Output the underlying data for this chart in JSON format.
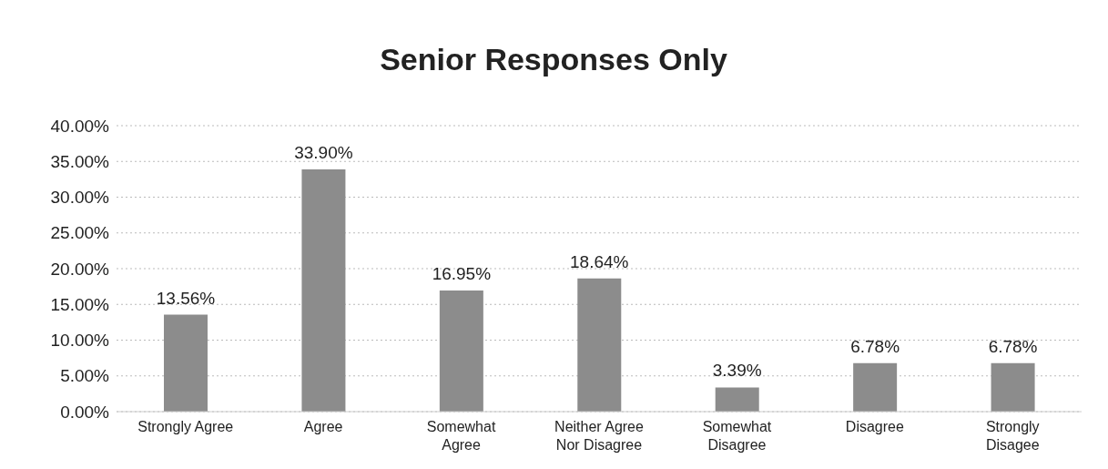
{
  "chart_data": {
    "type": "bar",
    "title": "Senior Responses Only",
    "categories": [
      "Strongly Agree",
      "Agree",
      "Somewhat\nAgree",
      "Neither Agree\nNor Disagree",
      "Somewhat\nDisagree",
      "Disagree",
      "Strongly\nDisagee"
    ],
    "values": [
      13.56,
      33.9,
      16.95,
      18.64,
      3.39,
      6.78,
      6.78
    ],
    "value_labels": [
      "13.56%",
      "33.90%",
      "16.95%",
      "18.64%",
      "3.39%",
      "6.78%",
      "6.78%"
    ],
    "color": "#8c8c8c",
    "ylim": [
      0,
      40
    ],
    "yticks": [
      {
        "value": 0,
        "label": "0.00%"
      },
      {
        "value": 5,
        "label": "5.00%"
      },
      {
        "value": 10,
        "label": "10.00%"
      },
      {
        "value": 15,
        "label": "15.00%"
      },
      {
        "value": 20,
        "label": "20.00%"
      },
      {
        "value": 25,
        "label": "25.00%"
      },
      {
        "value": 30,
        "label": "30.00%"
      },
      {
        "value": 35,
        "label": "35.00%"
      },
      {
        "value": 40,
        "label": "40.00%"
      }
    ],
    "grid": "y"
  }
}
